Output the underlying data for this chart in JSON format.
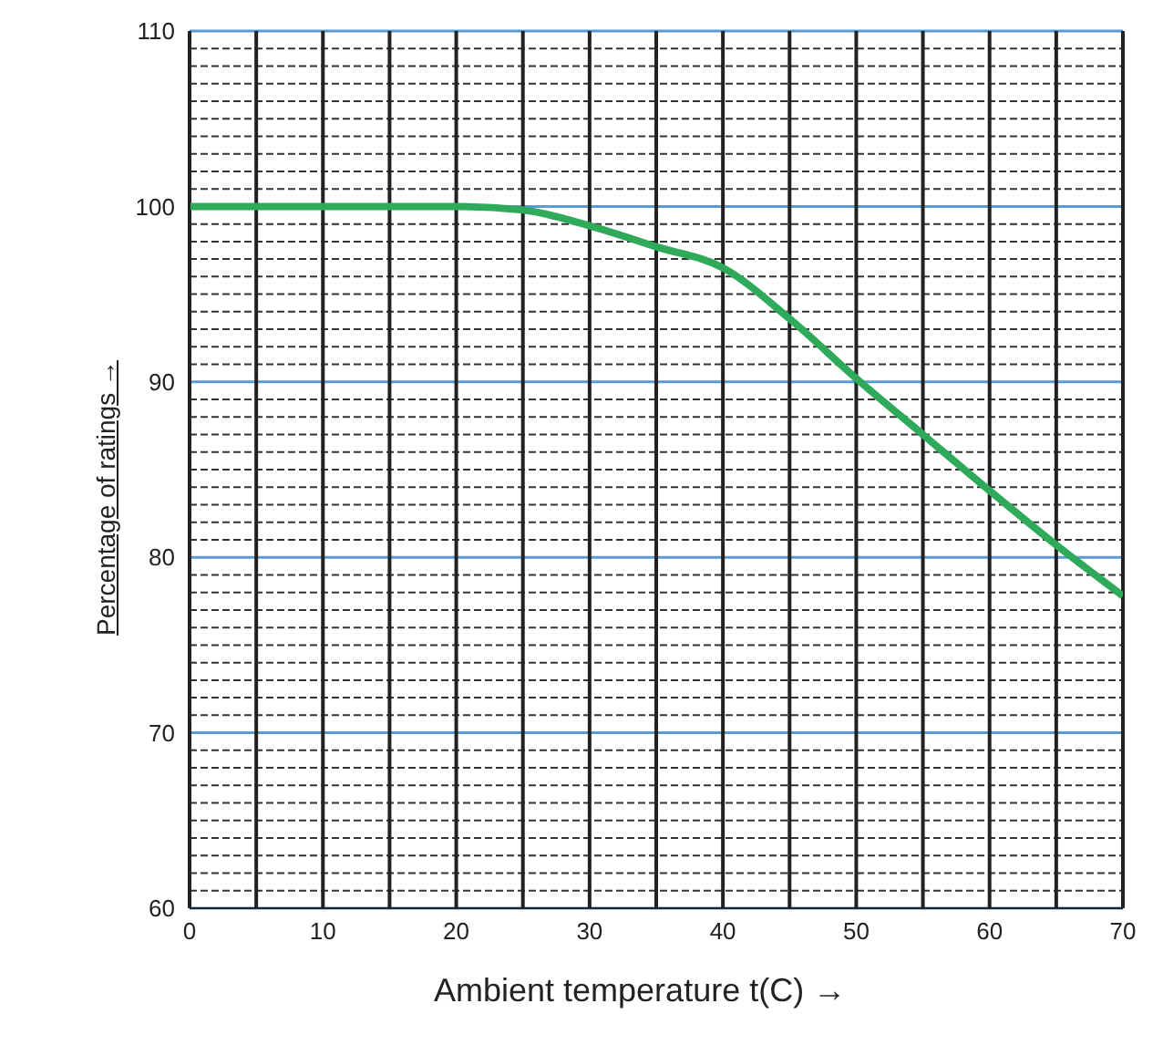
{
  "chart_data": {
    "type": "line",
    "xlabel": "Ambient temperature t(C) →",
    "ylabel": "Percentage of ratings →",
    "x": [
      0,
      5,
      10,
      15,
      20,
      25,
      30,
      35,
      40,
      45,
      50,
      55,
      60,
      65,
      70
    ],
    "series": [
      {
        "color": "#2eaa5a",
        "values": [
          100,
          100,
          100,
          100,
          100,
          99.8,
          98.9,
          97.7,
          96.5,
          93.6,
          90.2,
          87,
          83.8,
          80.7,
          77.8
        ]
      }
    ],
    "xlim": [
      0,
      70
    ],
    "ylim": [
      60,
      110
    ],
    "xticks": [
      0,
      {
        "value": 5,
        "label": null
      },
      10,
      {
        "value": 15,
        "label": null
      },
      20,
      {
        "value": 25,
        "label": null
      },
      30,
      {
        "value": 35,
        "label": null
      },
      40,
      {
        "value": 45,
        "label": null
      },
      50,
      {
        "value": 55,
        "label": null
      },
      60,
      {
        "value": 65,
        "label": null
      },
      70
    ],
    "yticks": [
      60,
      {
        "value": 61,
        "label": null
      },
      {
        "value": 62,
        "label": null
      },
      {
        "value": 63,
        "label": null
      },
      {
        "value": 64,
        "label": null
      },
      {
        "value": 65,
        "label": null
      },
      {
        "value": 66,
        "label": null
      },
      {
        "value": 67,
        "label": null
      },
      {
        "value": 68,
        "label": null
      },
      {
        "value": 69,
        "label": null
      },
      70,
      {
        "value": 71,
        "label": null
      },
      {
        "value": 72,
        "label": null
      },
      {
        "value": 73,
        "label": null
      },
      {
        "value": 74,
        "label": null
      },
      {
        "value": 75,
        "label": null
      },
      {
        "value": 76,
        "label": null
      },
      {
        "value": 77,
        "label": null
      },
      {
        "value": 78,
        "label": null
      },
      {
        "value": 79,
        "label": null
      },
      80,
      {
        "value": 81,
        "label": null
      },
      {
        "value": 82,
        "label": null
      },
      {
        "value": 83,
        "label": null
      },
      {
        "value": 84,
        "label": null
      },
      {
        "value": 85,
        "label": null
      },
      {
        "value": 86,
        "label": null
      },
      {
        "value": 87,
        "label": null
      },
      {
        "value": 88,
        "label": null
      },
      {
        "value": 89,
        "label": null
      },
      90,
      {
        "value": 91,
        "label": null
      },
      {
        "value": 92,
        "label": null
      },
      {
        "value": 93,
        "label": null
      },
      {
        "value": 94,
        "label": null
      },
      {
        "value": 95,
        "label": null
      },
      {
        "value": 96,
        "label": null
      },
      {
        "value": 97,
        "label": null
      },
      {
        "value": 98,
        "label": null
      },
      {
        "value": 99,
        "label": null
      },
      100,
      {
        "value": 101,
        "label": null
      },
      {
        "value": 102,
        "label": null
      },
      {
        "value": 103,
        "label": null
      },
      {
        "value": 104,
        "label": null
      },
      {
        "value": 105,
        "label": null
      },
      {
        "value": 106,
        "label": null
      },
      {
        "value": 107,
        "label": null
      },
      {
        "value": 108,
        "label": null
      },
      {
        "value": 109,
        "label": null
      },
      110
    ],
    "grid": true,
    "marker": "none",
    "line_style": "solid"
  }
}
